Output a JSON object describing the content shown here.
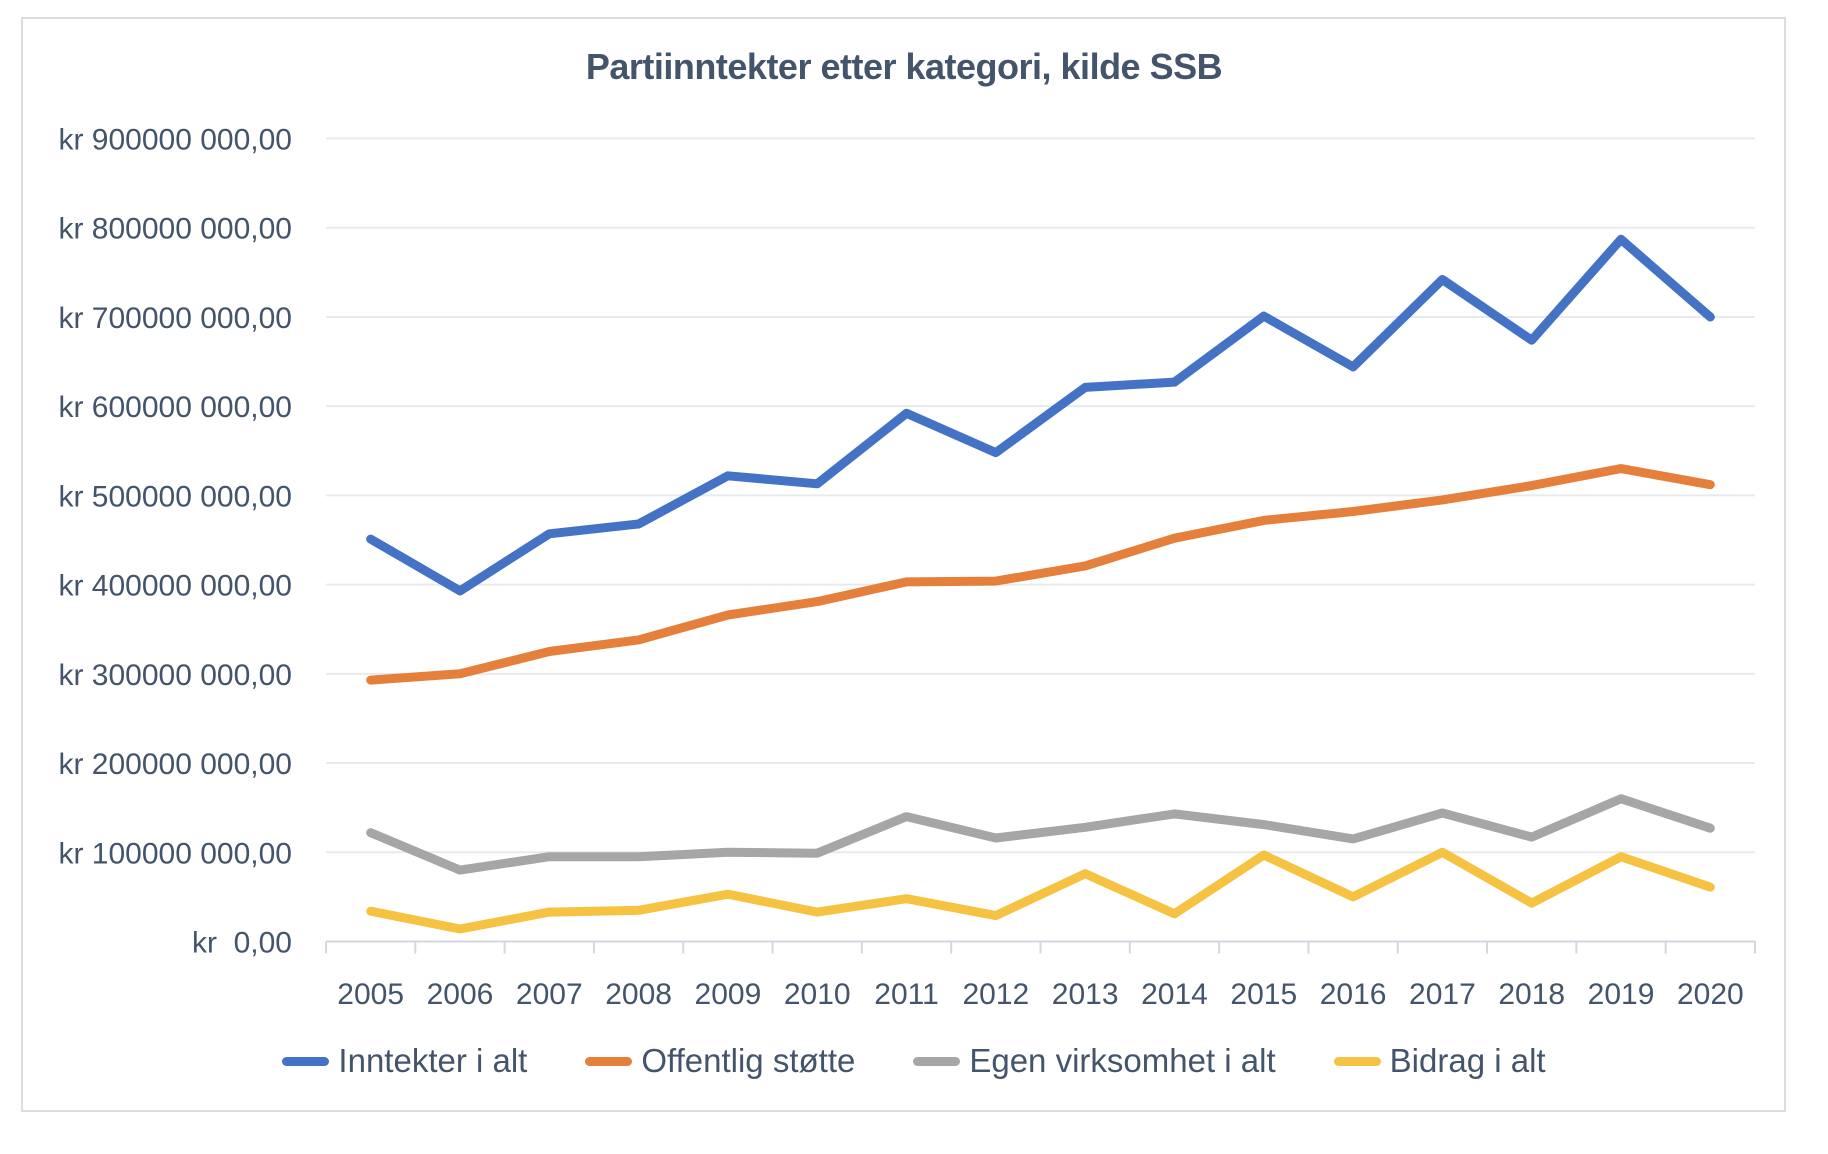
{
  "title": "Partiinntekter etter kategori, kilde SSB",
  "colors": {
    "title_text": "#44546A",
    "axis_text": "#44546A",
    "gridline": "#e7eaee",
    "axis_line": "#d3d8de",
    "frame_border": "#dadde2",
    "series_blue": "#4472C4",
    "series_orange": "#E5803C",
    "series_gray": "#A6A6A6",
    "series_yellow": "#F5C242"
  },
  "y_axis": {
    "tick_labels": [
      "kr  0,00",
      "kr 100000 000,00",
      "kr 200000 000,00",
      "kr 300000 000,00",
      "kr 400000 000,00",
      "kr 500000 000,00",
      "kr 600000 000,00",
      "kr 700000 000,00",
      "kr 800000 000,00",
      "kr 900000 000,00"
    ]
  },
  "x_axis": {
    "tick_labels": [
      "2005",
      "2006",
      "2007",
      "2008",
      "2009",
      "2010",
      "2011",
      "2012",
      "2013",
      "2014",
      "2015",
      "2016",
      "2017",
      "2018",
      "2019",
      "2020"
    ]
  },
  "legend_labels": [
    "Inntekter i alt",
    "Offentlig støtte",
    "Egen virksomhet i alt",
    "Bidrag i alt"
  ],
  "chart_data": {
    "type": "line",
    "title": "Partiinntekter etter kategori, kilde SSB",
    "x": [
      2005,
      2006,
      2007,
      2008,
      2009,
      2010,
      2011,
      2012,
      2013,
      2014,
      2015,
      2016,
      2017,
      2018,
      2019,
      2020
    ],
    "series": [
      {
        "name": "Inntekter i alt",
        "color": "#4472C4",
        "values": [
          451000000,
          393000000,
          457000000,
          468000000,
          522000000,
          513000000,
          592000000,
          548000000,
          621000000,
          627000000,
          701000000,
          644000000,
          742000000,
          674000000,
          787000000,
          700000000
        ]
      },
      {
        "name": "Offentlig støtte",
        "color": "#E5803C",
        "values": [
          293000000,
          300000000,
          325000000,
          338000000,
          366000000,
          381000000,
          403000000,
          404000000,
          421000000,
          452000000,
          472000000,
          482000000,
          495000000,
          511000000,
          530000000,
          512000000
        ]
      },
      {
        "name": "Egen virksomhet i alt",
        "color": "#A6A6A6",
        "values": [
          122000000,
          80000000,
          95000000,
          95000000,
          100000000,
          99000000,
          140000000,
          116000000,
          128000000,
          143000000,
          131000000,
          115000000,
          144000000,
          117000000,
          160000000,
          127000000
        ]
      },
      {
        "name": "Bidrag i alt",
        "color": "#F5C242",
        "values": [
          34000000,
          14000000,
          33000000,
          35000000,
          53000000,
          33000000,
          48000000,
          29000000,
          76000000,
          31000000,
          97000000,
          50000000,
          100000000,
          43000000,
          95000000,
          61000000
        ]
      }
    ],
    "ylim": [
      0,
      900000000
    ],
    "y_tick_step": 100000000,
    "grid": true,
    "legend_position": "bottom"
  }
}
